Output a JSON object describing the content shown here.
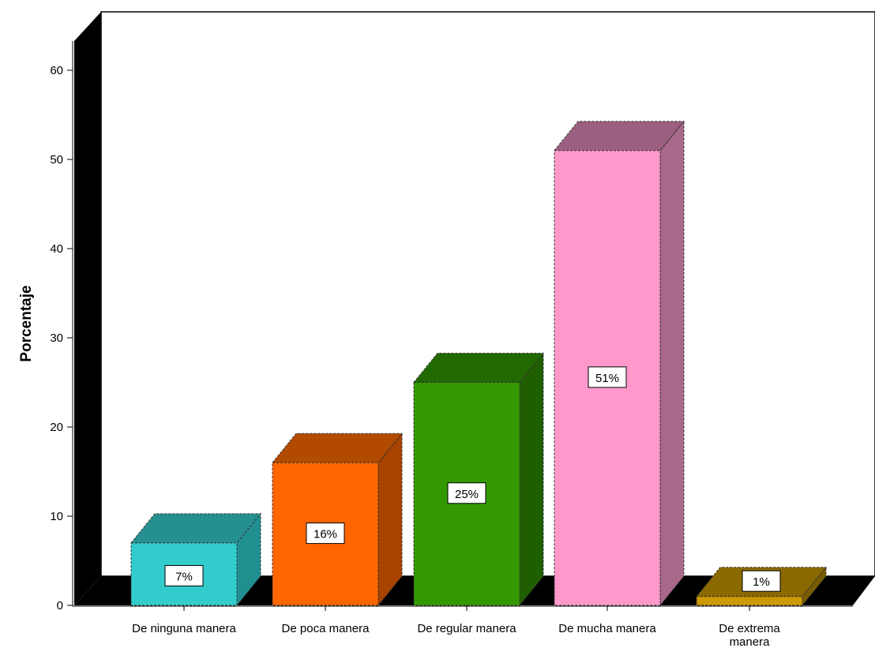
{
  "chart_data": {
    "type": "bar",
    "style": "3d",
    "title": "",
    "xlabel": "",
    "ylabel": "Porcentaje",
    "ylim": [
      0,
      60
    ],
    "yticks": [
      0,
      10,
      20,
      30,
      40,
      50,
      60
    ],
    "grid": false,
    "categories": [
      [
        "De ninguna manera"
      ],
      [
        "De poca manera"
      ],
      [
        "De regular manera"
      ],
      [
        "De mucha manera"
      ],
      [
        "De extrema",
        "manera"
      ]
    ],
    "values": [
      7,
      16,
      25,
      51,
      1
    ],
    "data_labels": [
      "7%",
      "16%",
      "25%",
      "51%",
      "1%"
    ],
    "colors": [
      {
        "front": "#33cccc",
        "side": "#1f8f90",
        "top": "#268f8f"
      },
      {
        "front": "#ff6600",
        "side": "#a84300",
        "top": "#b24a00"
      },
      {
        "front": "#339900",
        "side": "#1f5f00",
        "top": "#226a00"
      },
      {
        "front": "#ff99cc",
        "side": "#a8698a",
        "top": "#9c5f80"
      },
      {
        "front": "#cc9900",
        "side": "#7a5c00",
        "top": "#8a6a00"
      }
    ]
  }
}
